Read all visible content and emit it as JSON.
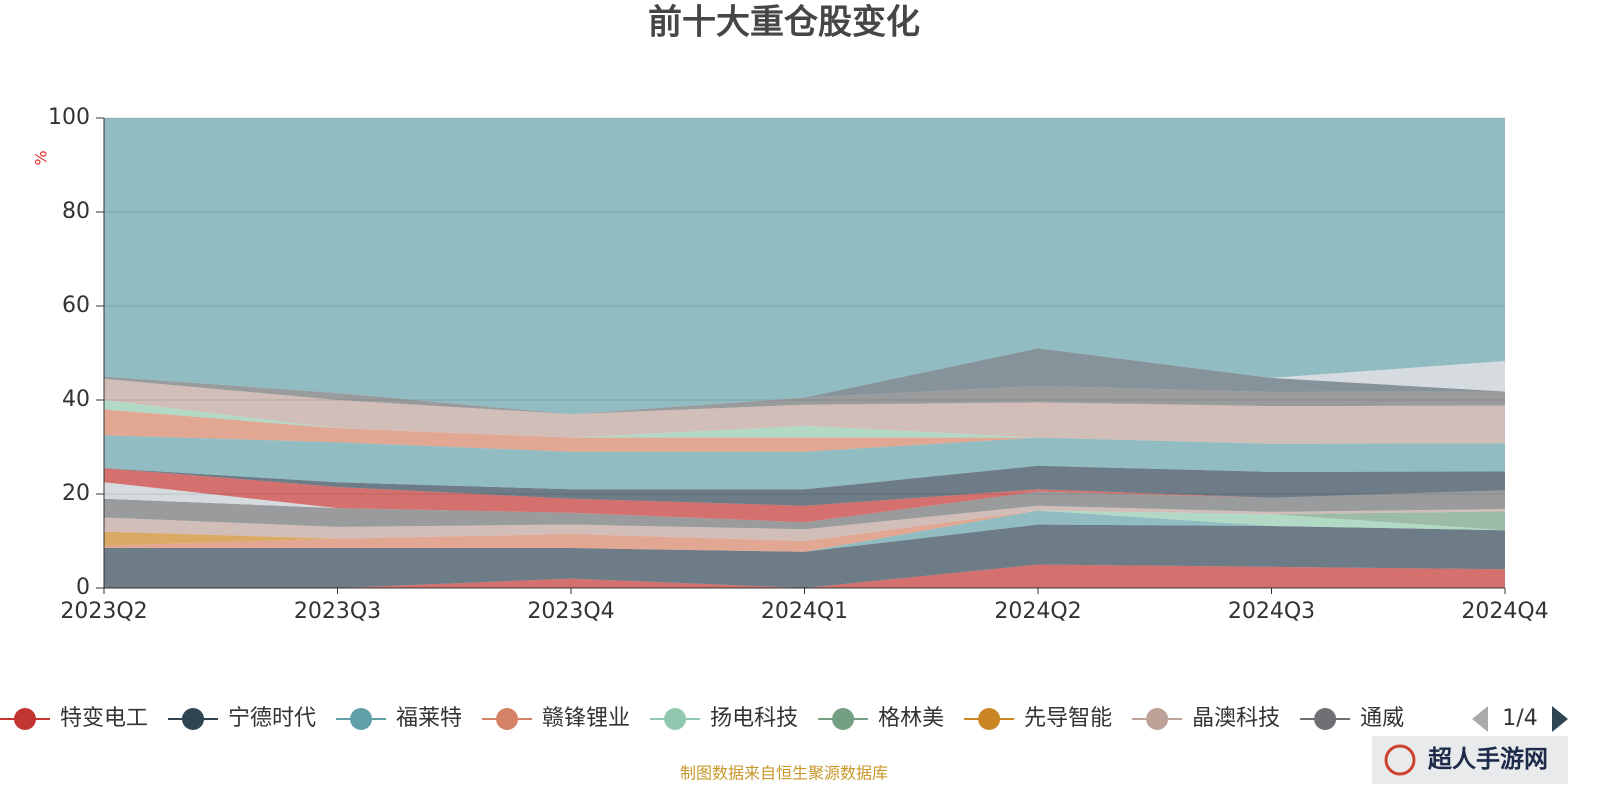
{
  "chart_data": {
    "type": "area",
    "stacked": true,
    "title": "前十大重仓股变化",
    "y_label": "%",
    "categories": [
      "2023Q2",
      "2023Q3",
      "2023Q4",
      "2024Q1",
      "2024Q2",
      "2024Q3",
      "2024Q4"
    ],
    "ylim": [
      0,
      100
    ],
    "yticks": [
      0,
      20,
      40,
      60,
      80,
      100
    ],
    "grid": true,
    "area_opacity": 0.7,
    "legend_position": "bottom",
    "legend_page": "1/4",
    "series": [
      {
        "name": "特变电工",
        "color": "#c23531",
        "values": [
          0,
          0,
          2,
          0,
          5,
          4.5,
          4
        ]
      },
      {
        "name": "宁德时代",
        "color": "#2f4554",
        "values": [
          8.5,
          8.5,
          6.5,
          7.7,
          8.5,
          8.7,
          8.3
        ]
      },
      {
        "name": "福莱特",
        "color": "#61a0a8",
        "values": [
          0,
          0,
          0,
          0,
          3,
          0,
          0
        ]
      },
      {
        "name": "赣锋锂业",
        "color": "#d48265",
        "values": [
          0.5,
          2,
          3,
          2.3,
          0,
          0,
          0
        ]
      },
      {
        "name": "扬电科技",
        "color": "#91c7ae",
        "values": [
          0,
          0,
          0,
          0,
          0,
          2.5,
          0
        ]
      },
      {
        "name": "格林美",
        "color": "#749f83",
        "values": [
          0,
          0,
          0,
          0,
          0,
          0,
          4
        ]
      },
      {
        "name": "先导智能",
        "color": "#ca8622",
        "values": [
          3,
          0,
          0,
          0,
          0,
          0,
          0
        ]
      },
      {
        "name": "晶澳科技",
        "color": "#bda29a",
        "values": [
          3,
          2.5,
          2,
          2.5,
          1,
          0.5,
          0.5
        ]
      },
      {
        "name": "通威",
        "color": "#6e7074",
        "values": [
          4,
          4,
          2.5,
          1.5,
          3,
          3,
          4
        ]
      },
      {
        "color": "#c4ccd3",
        "values": [
          3.5,
          0,
          0,
          0,
          0,
          0,
          0
        ]
      },
      {
        "color": "#c23531",
        "values": [
          3,
          4.5,
          3,
          3.5,
          0.5,
          0,
          0
        ]
      },
      {
        "color": "#2f4554",
        "values": [
          0,
          1,
          2,
          3.5,
          5,
          5.5,
          4
        ]
      },
      {
        "color": "#61a0a8",
        "values": [
          7,
          8.5,
          8,
          8,
          6,
          6,
          6
        ]
      },
      {
        "color": "#d48265",
        "values": [
          5.5,
          3,
          3,
          3,
          0,
          0,
          0
        ]
      },
      {
        "color": "#91c7ae",
        "values": [
          2,
          0,
          0,
          2.5,
          0,
          0,
          0
        ]
      },
      {
        "color": "#bda29a",
        "values": [
          4.5,
          6,
          5,
          4.5,
          7.5,
          8,
          8
        ]
      },
      {
        "color": "#6e7074",
        "values": [
          0.5,
          1.5,
          0,
          1.5,
          3.5,
          3,
          3
        ]
      },
      {
        "color": "#546570",
        "values": [
          0,
          0,
          0,
          0,
          8,
          3,
          0
        ]
      },
      {
        "color": "#c4ccd3",
        "values": [
          0,
          0,
          0,
          0,
          0,
          0,
          6.5
        ]
      },
      {
        "color": "#61a0a8",
        "values": [
          55,
          58.5,
          63,
          59.5,
          49,
          55.3,
          51.7
        ]
      }
    ],
    "source": "制图数据来自恒生聚源数据库"
  },
  "watermark": "超人手游网"
}
